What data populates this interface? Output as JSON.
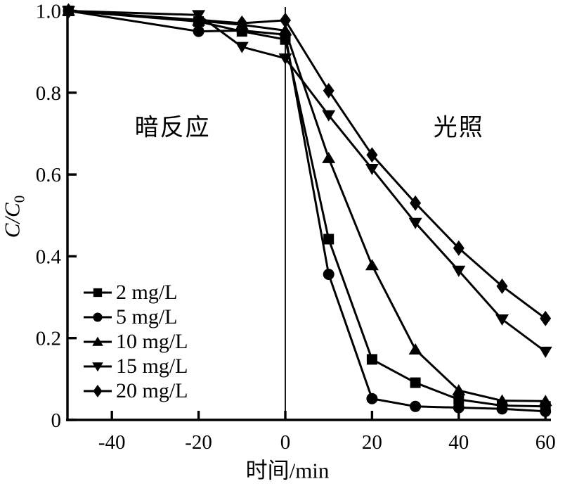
{
  "figure": {
    "background": "#ffffff",
    "ink": "#000000"
  },
  "chart_data": {
    "type": "line",
    "title": "",
    "xlabel": "时间/min",
    "ylabel": {
      "main": "C/C",
      "sub": "0"
    },
    "xlim": [
      -50,
      60
    ],
    "ylim": [
      0,
      1.0
    ],
    "x_ticks": [
      -40,
      -20,
      0,
      20,
      40,
      60
    ],
    "y_ticks": [
      "0",
      "0.2",
      "0.4",
      "0.6",
      "0.8",
      "1.0"
    ],
    "grid": false,
    "legend_position": "lower-left",
    "divider_x": 0,
    "annotations": [
      {
        "text": "暗反应",
        "x": -26,
        "y": 0.72
      },
      {
        "text": "光照",
        "x": 40,
        "y": 0.72
      }
    ],
    "x": [
      -50,
      -20,
      -10,
      0,
      10,
      20,
      30,
      40,
      50,
      60
    ],
    "series": [
      {
        "name": "2 mg/L",
        "marker": "square",
        "values": [
          1.0,
          0.974,
          0.95,
          0.93,
          0.442,
          0.148,
          0.091,
          0.05,
          0.035,
          0.033
        ]
      },
      {
        "name": "5 mg/L",
        "marker": "circle",
        "values": [
          1.0,
          0.95,
          0.952,
          0.942,
          0.356,
          0.052,
          0.033,
          0.03,
          0.027,
          0.021
        ]
      },
      {
        "name": "10 mg/L",
        "marker": "triangle-up",
        "values": [
          1.0,
          0.976,
          0.966,
          0.952,
          0.64,
          0.378,
          0.172,
          0.072,
          0.047,
          0.046
        ]
      },
      {
        "name": "15 mg/L",
        "marker": "triangle-down",
        "values": [
          1.0,
          0.99,
          0.912,
          0.884,
          0.745,
          0.614,
          0.482,
          0.365,
          0.246,
          0.167
        ]
      },
      {
        "name": "20 mg/L",
        "marker": "diamond",
        "values": [
          1.0,
          0.978,
          0.97,
          0.977,
          0.805,
          0.648,
          0.53,
          0.42,
          0.327,
          0.248
        ]
      }
    ]
  }
}
